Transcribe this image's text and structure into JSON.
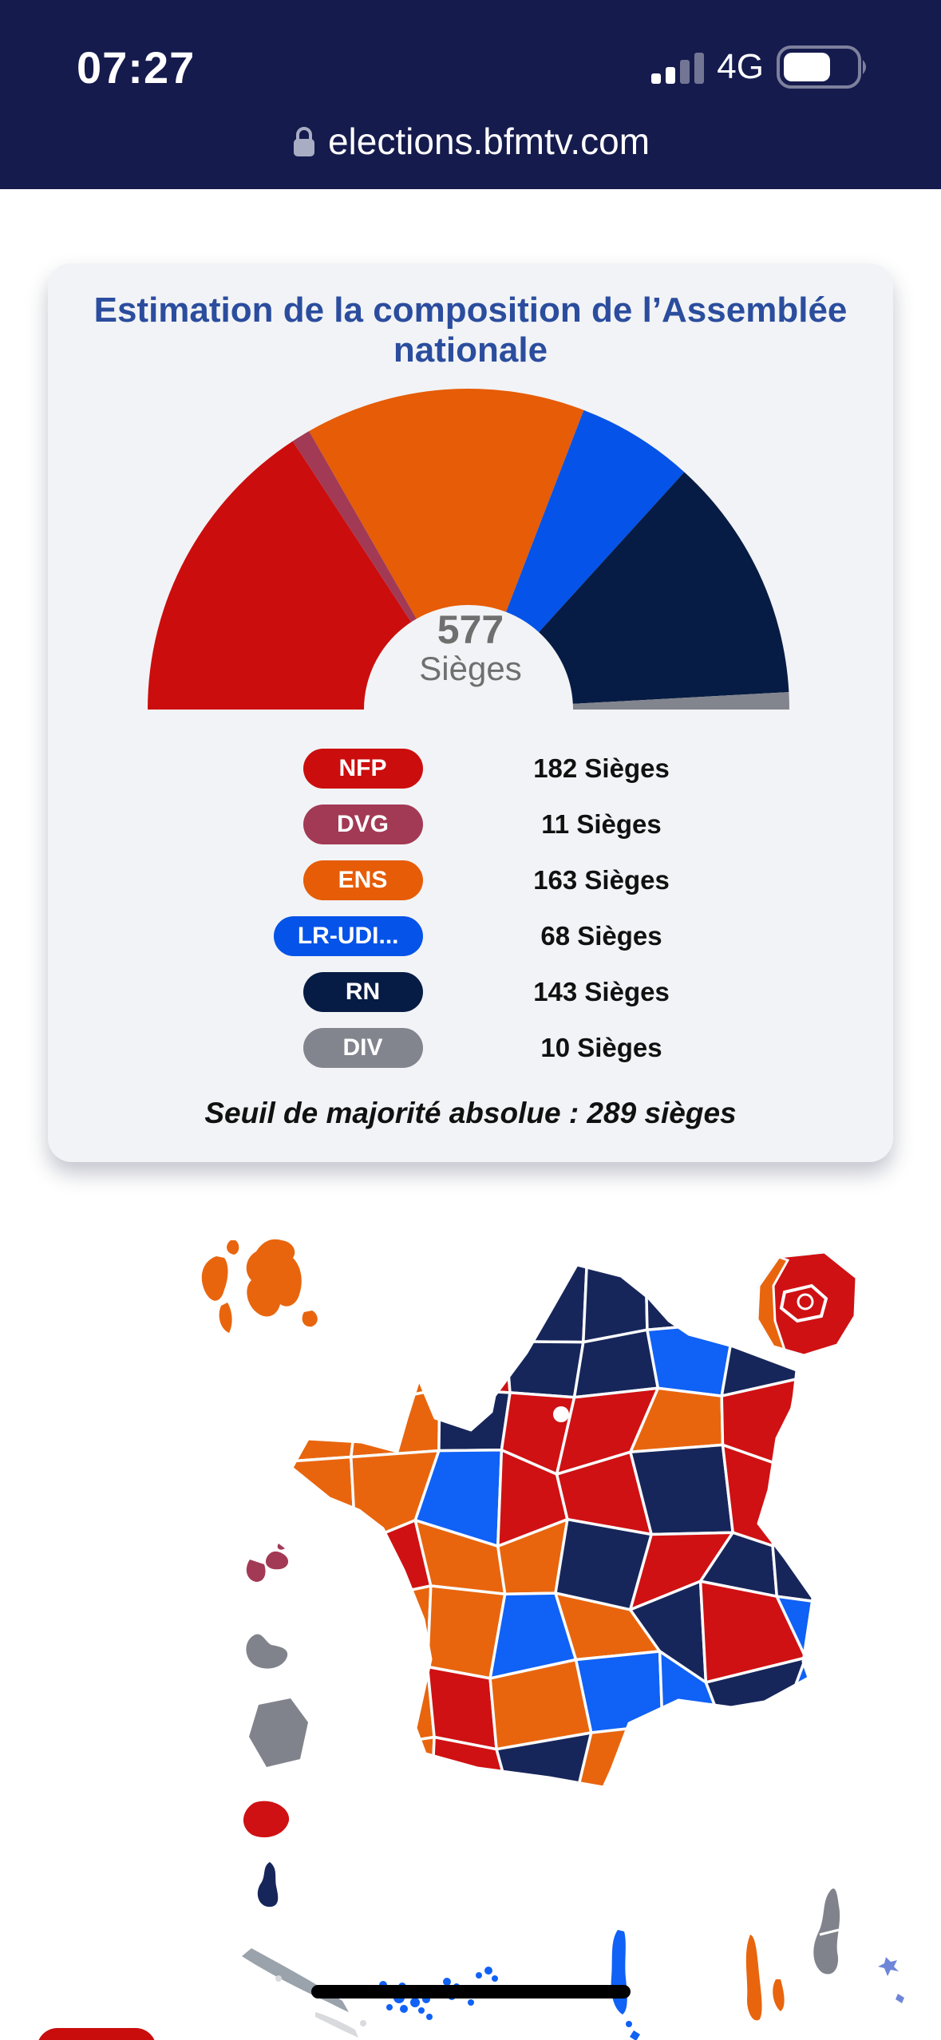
{
  "status_bar": {
    "time": "07:27",
    "network": "4G"
  },
  "url_bar": {
    "url": "elections.bfmtv.com"
  },
  "card": {
    "title": "Estimation de la composition de l’Assemblée nationale",
    "center_value": "577",
    "center_label": "Sièges",
    "majority_note": "Seuil de majorité absolue : 289 sièges"
  },
  "chart_data": {
    "type": "donut-half",
    "title": "Estimation de la composition de l’Assemblée nationale",
    "total_seats": 577,
    "majority_threshold": 289,
    "series": [
      {
        "name": "NFP",
        "seats": 182,
        "color": "#cc0d0d",
        "seats_label": "182 Sièges"
      },
      {
        "name": "DVG",
        "seats": 11,
        "color": "#a23a55",
        "seats_label": "11 Sièges"
      },
      {
        "name": "ENS",
        "seats": 163,
        "color": "#e65c07",
        "seats_label": "163 Sièges"
      },
      {
        "name": "LR-UDI...",
        "seats": 68,
        "color": "#0553e8",
        "seats_label": "68 Sièges"
      },
      {
        "name": "RN",
        "seats": 143,
        "color": "#071c44",
        "seats_label": "143 Sièges"
      },
      {
        "name": "DIV",
        "seats": 10,
        "color": "#83858e",
        "seats_label": "10 Sièges"
      }
    ],
    "legend_position": "below"
  },
  "map": {
    "stroke": "#fbfcfd",
    "colors": {
      "O": "#e8650e",
      "R": "#cf1113",
      "N": "#17265a",
      "B": "#1061f5",
      "M": "#a23a55",
      "G": "#81838c",
      "NC": "#9aa2ab",
      "NC2": "#d8dadd",
      "LB": "#6f86d8",
      "W": "#ffffff"
    },
    "cells": [
      "OONNNNNN",
      "OORNNBNO",
      "OONRRORO",
      "OOBRRNRN",
      "OROONRNN",
      "OOOBONRB",
      "ROROBBNB",
      "RORNORNN",
      "RRRNNRNN",
      "RRNNNRON"
    ]
  },
  "theme": {
    "header_bg": "#151b4d",
    "page_bg": "#ffffff",
    "card_bg": "#f2f3f6",
    "title_color": "#2b4d9e",
    "text_dark": "#111111",
    "gray_text": "#6f6f6f"
  }
}
